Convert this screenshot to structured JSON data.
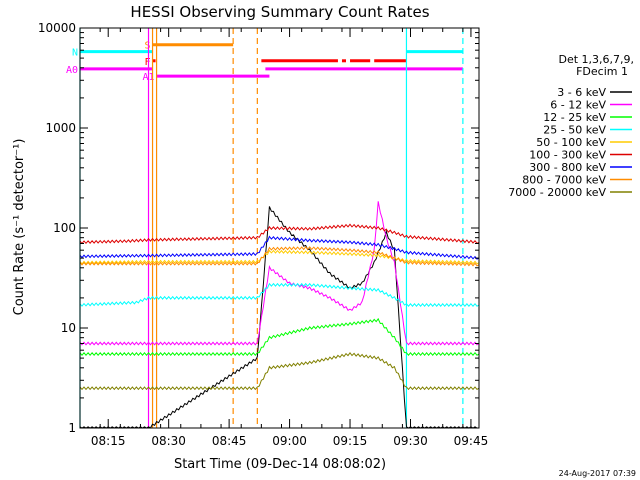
{
  "chart_data": {
    "type": "line",
    "title": "HESSI Observing Summary Count Rates",
    "xlabel": "Start Time (09-Dec-14 08:08:02)",
    "ylabel": "Count Rate (s⁻¹ detector⁻¹)",
    "xlim": [
      "08:08",
      "09:47"
    ],
    "ylim": [
      1,
      10000
    ],
    "y_scale": "log",
    "x_tick_labels": [
      "08:15",
      "08:30",
      "08:45",
      "09:00",
      "09:15",
      "09:30",
      "09:45"
    ],
    "y_tick_labels": [
      "1",
      "10",
      "100",
      "1000",
      "10000"
    ],
    "legend_header": [
      "Det 1,3,6,7,9,",
      "FDecim 1"
    ],
    "legend_position": "right",
    "footer": "24-Aug-2017 07:39",
    "series": [
      {
        "name": "3 - 6 keV",
        "color": "#000000",
        "points": [
          [
            "08:08",
            1
          ],
          [
            "08:25",
            1
          ],
          [
            "08:52",
            5
          ],
          [
            "08:55",
            160
          ],
          [
            "09:00",
            90
          ],
          [
            "09:05",
            60
          ],
          [
            "09:10",
            35
          ],
          [
            "09:15",
            25
          ],
          [
            "09:18",
            28
          ],
          [
            "09:21",
            45
          ],
          [
            "09:24",
            90
          ],
          [
            "09:26",
            60
          ],
          [
            "09:29",
            1
          ],
          [
            "09:47",
            1
          ]
        ]
      },
      {
        "name": "6 - 12 keV",
        "color": "#ff00ff",
        "points": [
          [
            "08:08",
            7
          ],
          [
            "08:25",
            7
          ],
          [
            "08:52",
            7
          ],
          [
            "08:55",
            40
          ],
          [
            "09:00",
            28
          ],
          [
            "09:05",
            25
          ],
          [
            "09:10",
            20
          ],
          [
            "09:15",
            15
          ],
          [
            "09:18",
            18
          ],
          [
            "09:21",
            60
          ],
          [
            "09:22",
            180
          ],
          [
            "09:24",
            80
          ],
          [
            "09:26",
            45
          ],
          [
            "09:29",
            7
          ],
          [
            "09:47",
            7
          ]
        ]
      },
      {
        "name": "12 - 25 keV",
        "color": "#00ff00",
        "points": [
          [
            "08:08",
            5.5
          ],
          [
            "08:25",
            5.5
          ],
          [
            "08:52",
            5.5
          ],
          [
            "08:55",
            8
          ],
          [
            "09:05",
            10
          ],
          [
            "09:15",
            11
          ],
          [
            "09:22",
            12
          ],
          [
            "09:26",
            8
          ],
          [
            "09:29",
            5.5
          ],
          [
            "09:47",
            5.5
          ]
        ]
      },
      {
        "name": "25 - 50 keV",
        "color": "#00ffff",
        "points": [
          [
            "08:08",
            17
          ],
          [
            "08:22",
            18
          ],
          [
            "08:25",
            20
          ],
          [
            "08:52",
            20
          ],
          [
            "08:55",
            27
          ],
          [
            "09:05",
            27
          ],
          [
            "09:15",
            25
          ],
          [
            "09:22",
            24
          ],
          [
            "09:26",
            20
          ],
          [
            "09:29",
            17
          ],
          [
            "09:47",
            17
          ]
        ]
      },
      {
        "name": "50 - 100 keV",
        "color": "#ffcc00",
        "points": [
          [
            "08:08",
            45
          ],
          [
            "08:25",
            46
          ],
          [
            "08:52",
            46
          ],
          [
            "08:55",
            58
          ],
          [
            "09:05",
            57
          ],
          [
            "09:15",
            55
          ],
          [
            "09:22",
            53
          ],
          [
            "09:26",
            50
          ],
          [
            "09:29",
            47
          ],
          [
            "09:47",
            45
          ]
        ]
      },
      {
        "name": "100 - 300 keV",
        "color": "#dd0000",
        "points": [
          [
            "08:08",
            72
          ],
          [
            "08:20",
            74
          ],
          [
            "08:25",
            76
          ],
          [
            "08:52",
            80
          ],
          [
            "08:55",
            100
          ],
          [
            "09:05",
            98
          ],
          [
            "09:15",
            106
          ],
          [
            "09:22",
            100
          ],
          [
            "09:26",
            90
          ],
          [
            "09:29",
            82
          ],
          [
            "09:47",
            72
          ]
        ]
      },
      {
        "name": "300 - 800 keV",
        "color": "#0000ff",
        "points": [
          [
            "08:08",
            52
          ],
          [
            "08:25",
            53
          ],
          [
            "08:52",
            55
          ],
          [
            "08:55",
            80
          ],
          [
            "09:05",
            75
          ],
          [
            "09:15",
            72
          ],
          [
            "09:22",
            68
          ],
          [
            "09:26",
            62
          ],
          [
            "09:29",
            57
          ],
          [
            "09:47",
            50
          ]
        ]
      },
      {
        "name": "800 - 7000 keV",
        "color": "#ff8c00",
        "points": [
          [
            "08:08",
            44
          ],
          [
            "08:25",
            44
          ],
          [
            "08:52",
            44
          ],
          [
            "08:55",
            62
          ],
          [
            "09:05",
            63
          ],
          [
            "09:15",
            60
          ],
          [
            "09:22",
            57
          ],
          [
            "09:26",
            50
          ],
          [
            "09:29",
            45
          ],
          [
            "09:47",
            43
          ]
        ]
      },
      {
        "name": "7000 - 20000 keV",
        "color": "#808000",
        "points": [
          [
            "08:08",
            2.5
          ],
          [
            "08:25",
            2.5
          ],
          [
            "08:52",
            2.5
          ],
          [
            "08:55",
            4
          ],
          [
            "09:05",
            4.5
          ],
          [
            "09:15",
            5.5
          ],
          [
            "09:22",
            5
          ],
          [
            "09:26",
            4
          ],
          [
            "09:29",
            2.5
          ],
          [
            "09:47",
            2.5
          ]
        ]
      }
    ],
    "flag_bars": [
      {
        "label": "S",
        "color": "#ff8c00",
        "y": 6800,
        "segments": [
          [
            "08:26",
            "08:46"
          ]
        ]
      },
      {
        "label": "N",
        "color": "#00ffff",
        "y": 5800,
        "segments": [
          [
            "08:08",
            "08:26"
          ],
          [
            "09:29",
            "09:43"
          ]
        ]
      },
      {
        "label": "F",
        "color": "#ff0000",
        "y": 4700,
        "segments": [
          [
            "08:26",
            "08:26"
          ],
          [
            "08:53",
            "09:12"
          ],
          [
            "09:13",
            "09:14"
          ],
          [
            "09:15",
            "09:20"
          ],
          [
            "09:21",
            "09:29"
          ]
        ]
      },
      {
        "label": "A0",
        "color": "#ff00ff",
        "y": 3900,
        "segments": [
          [
            "08:08",
            "08:26"
          ],
          [
            "08:54",
            "09:43"
          ]
        ]
      },
      {
        "label": "A1",
        "color": "#ff00ff",
        "y": 3300,
        "segments": [
          [
            "08:27",
            "08:55"
          ]
        ]
      }
    ],
    "vertical_markers": [
      {
        "time": "08:08",
        "color": "#00ffff",
        "style": "solid"
      },
      {
        "time": "08:25",
        "color": "#ff00ff",
        "style": "solid"
      },
      {
        "time": "08:26",
        "color": "#ff8c00",
        "style": "solid"
      },
      {
        "time": "08:27",
        "color": "#ff8c00",
        "style": "solid"
      },
      {
        "time": "08:46",
        "color": "#ff8c00",
        "style": "dashed"
      },
      {
        "time": "08:52",
        "color": "#ff8c00",
        "style": "dashed"
      },
      {
        "time": "09:29",
        "color": "#00ffff",
        "style": "solid"
      },
      {
        "time": "09:43",
        "color": "#00ffff",
        "style": "dashed"
      }
    ]
  }
}
